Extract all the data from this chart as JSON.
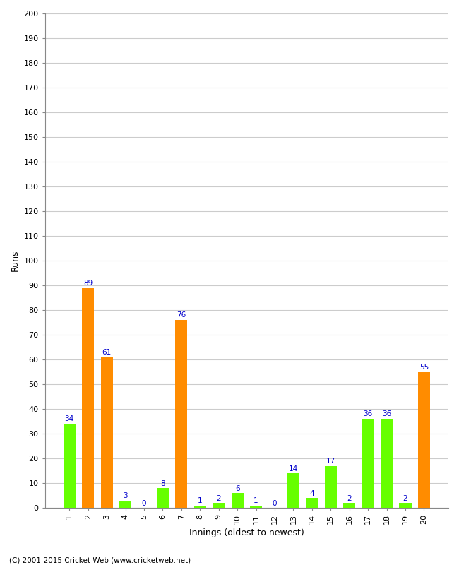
{
  "title": "",
  "xlabel": "Innings (oldest to newest)",
  "ylabel": "Runs",
  "values": [
    34,
    89,
    61,
    3,
    0,
    8,
    76,
    1,
    2,
    6,
    1,
    0,
    14,
    4,
    17,
    2,
    36,
    36,
    2,
    55
  ],
  "colors": [
    "#66ff00",
    "#ff8c00",
    "#ff8c00",
    "#66ff00",
    "#66ff00",
    "#66ff00",
    "#ff8c00",
    "#66ff00",
    "#66ff00",
    "#66ff00",
    "#66ff00",
    "#66ff00",
    "#66ff00",
    "#66ff00",
    "#66ff00",
    "#66ff00",
    "#66ff00",
    "#66ff00",
    "#66ff00",
    "#ff8c00"
  ],
  "innings": [
    1,
    2,
    3,
    4,
    5,
    6,
    7,
    8,
    9,
    10,
    11,
    12,
    13,
    14,
    15,
    16,
    17,
    18,
    19,
    20
  ],
  "ylim": [
    0,
    200
  ],
  "yticks": [
    0,
    10,
    20,
    30,
    40,
    50,
    60,
    70,
    80,
    90,
    100,
    110,
    120,
    130,
    140,
    150,
    160,
    170,
    180,
    190,
    200
  ],
  "label_color": "#0000cc",
  "plot_bg_color": "#ffffff",
  "fig_bg_color": "#ffffff",
  "grid_color": "#cccccc",
  "footer": "(C) 2001-2015 Cricket Web (www.cricketweb.net)"
}
